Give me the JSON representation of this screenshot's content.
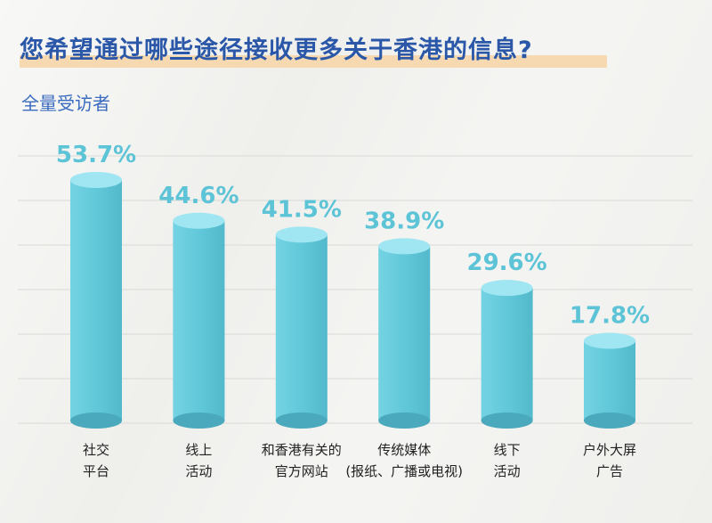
{
  "chart": {
    "title": "您希望通过哪些途径接收更多关于香港的信息?",
    "subtitle": "全量受访者"
  },
  "colors": {
    "title": "#2a57a8",
    "subtitle": "#3a6cc0",
    "bar_top": "#9fe6f2",
    "bar_body": "#5fc7d8",
    "bar_bottom": "#4aa9bc",
    "value_label": "#5cc4d6",
    "highlight": "#f6d9b0"
  },
  "chart_data": {
    "type": "bar",
    "title": "您希望通过哪些途径接收更多关于香港的信息?",
    "subtitle": "全量受访者",
    "categories": [
      [
        "社交",
        "平台"
      ],
      [
        "线上",
        "活动"
      ],
      [
        "和香港有关的",
        "官方网站"
      ],
      [
        "传统媒体",
        "(报纸、广播或电视)"
      ],
      [
        "线下",
        "活动"
      ],
      [
        "户外大屏",
        "广告"
      ]
    ],
    "values": [
      53.7,
      44.6,
      41.5,
      38.9,
      29.6,
      17.8
    ],
    "value_labels": [
      "53.7%",
      "44.6%",
      "41.5%",
      "38.9%",
      "29.6%",
      "17.8%"
    ],
    "unit": "%",
    "ylim": [
      0,
      60
    ],
    "grid": true
  }
}
